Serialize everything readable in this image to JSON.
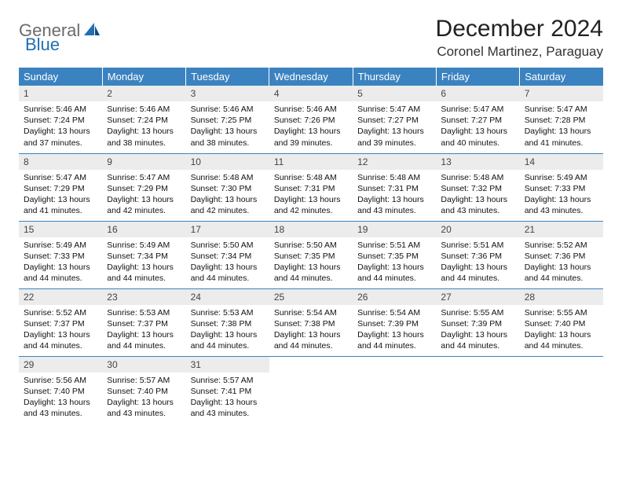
{
  "logo": {
    "part1": "General",
    "part2": "Blue"
  },
  "title": "December 2024",
  "location": "Coronel Martinez, Paraguay",
  "colors": {
    "header_bg": "#3b83c0",
    "header_text": "#ffffff",
    "daynum_bg": "#ececec",
    "border": "#3b83c0",
    "logo_gray": "#6b6b6b",
    "logo_blue": "#1f6fb2"
  },
  "weekdays": [
    "Sunday",
    "Monday",
    "Tuesday",
    "Wednesday",
    "Thursday",
    "Friday",
    "Saturday"
  ],
  "weeks": [
    [
      {
        "n": "1",
        "sr": "Sunrise: 5:46 AM",
        "ss": "Sunset: 7:24 PM",
        "dl": "Daylight: 13 hours and 37 minutes."
      },
      {
        "n": "2",
        "sr": "Sunrise: 5:46 AM",
        "ss": "Sunset: 7:24 PM",
        "dl": "Daylight: 13 hours and 38 minutes."
      },
      {
        "n": "3",
        "sr": "Sunrise: 5:46 AM",
        "ss": "Sunset: 7:25 PM",
        "dl": "Daylight: 13 hours and 38 minutes."
      },
      {
        "n": "4",
        "sr": "Sunrise: 5:46 AM",
        "ss": "Sunset: 7:26 PM",
        "dl": "Daylight: 13 hours and 39 minutes."
      },
      {
        "n": "5",
        "sr": "Sunrise: 5:47 AM",
        "ss": "Sunset: 7:27 PM",
        "dl": "Daylight: 13 hours and 39 minutes."
      },
      {
        "n": "6",
        "sr": "Sunrise: 5:47 AM",
        "ss": "Sunset: 7:27 PM",
        "dl": "Daylight: 13 hours and 40 minutes."
      },
      {
        "n": "7",
        "sr": "Sunrise: 5:47 AM",
        "ss": "Sunset: 7:28 PM",
        "dl": "Daylight: 13 hours and 41 minutes."
      }
    ],
    [
      {
        "n": "8",
        "sr": "Sunrise: 5:47 AM",
        "ss": "Sunset: 7:29 PM",
        "dl": "Daylight: 13 hours and 41 minutes."
      },
      {
        "n": "9",
        "sr": "Sunrise: 5:47 AM",
        "ss": "Sunset: 7:29 PM",
        "dl": "Daylight: 13 hours and 42 minutes."
      },
      {
        "n": "10",
        "sr": "Sunrise: 5:48 AM",
        "ss": "Sunset: 7:30 PM",
        "dl": "Daylight: 13 hours and 42 minutes."
      },
      {
        "n": "11",
        "sr": "Sunrise: 5:48 AM",
        "ss": "Sunset: 7:31 PM",
        "dl": "Daylight: 13 hours and 42 minutes."
      },
      {
        "n": "12",
        "sr": "Sunrise: 5:48 AM",
        "ss": "Sunset: 7:31 PM",
        "dl": "Daylight: 13 hours and 43 minutes."
      },
      {
        "n": "13",
        "sr": "Sunrise: 5:48 AM",
        "ss": "Sunset: 7:32 PM",
        "dl": "Daylight: 13 hours and 43 minutes."
      },
      {
        "n": "14",
        "sr": "Sunrise: 5:49 AM",
        "ss": "Sunset: 7:33 PM",
        "dl": "Daylight: 13 hours and 43 minutes."
      }
    ],
    [
      {
        "n": "15",
        "sr": "Sunrise: 5:49 AM",
        "ss": "Sunset: 7:33 PM",
        "dl": "Daylight: 13 hours and 44 minutes."
      },
      {
        "n": "16",
        "sr": "Sunrise: 5:49 AM",
        "ss": "Sunset: 7:34 PM",
        "dl": "Daylight: 13 hours and 44 minutes."
      },
      {
        "n": "17",
        "sr": "Sunrise: 5:50 AM",
        "ss": "Sunset: 7:34 PM",
        "dl": "Daylight: 13 hours and 44 minutes."
      },
      {
        "n": "18",
        "sr": "Sunrise: 5:50 AM",
        "ss": "Sunset: 7:35 PM",
        "dl": "Daylight: 13 hours and 44 minutes."
      },
      {
        "n": "19",
        "sr": "Sunrise: 5:51 AM",
        "ss": "Sunset: 7:35 PM",
        "dl": "Daylight: 13 hours and 44 minutes."
      },
      {
        "n": "20",
        "sr": "Sunrise: 5:51 AM",
        "ss": "Sunset: 7:36 PM",
        "dl": "Daylight: 13 hours and 44 minutes."
      },
      {
        "n": "21",
        "sr": "Sunrise: 5:52 AM",
        "ss": "Sunset: 7:36 PM",
        "dl": "Daylight: 13 hours and 44 minutes."
      }
    ],
    [
      {
        "n": "22",
        "sr": "Sunrise: 5:52 AM",
        "ss": "Sunset: 7:37 PM",
        "dl": "Daylight: 13 hours and 44 minutes."
      },
      {
        "n": "23",
        "sr": "Sunrise: 5:53 AM",
        "ss": "Sunset: 7:37 PM",
        "dl": "Daylight: 13 hours and 44 minutes."
      },
      {
        "n": "24",
        "sr": "Sunrise: 5:53 AM",
        "ss": "Sunset: 7:38 PM",
        "dl": "Daylight: 13 hours and 44 minutes."
      },
      {
        "n": "25",
        "sr": "Sunrise: 5:54 AM",
        "ss": "Sunset: 7:38 PM",
        "dl": "Daylight: 13 hours and 44 minutes."
      },
      {
        "n": "26",
        "sr": "Sunrise: 5:54 AM",
        "ss": "Sunset: 7:39 PM",
        "dl": "Daylight: 13 hours and 44 minutes."
      },
      {
        "n": "27",
        "sr": "Sunrise: 5:55 AM",
        "ss": "Sunset: 7:39 PM",
        "dl": "Daylight: 13 hours and 44 minutes."
      },
      {
        "n": "28",
        "sr": "Sunrise: 5:55 AM",
        "ss": "Sunset: 7:40 PM",
        "dl": "Daylight: 13 hours and 44 minutes."
      }
    ],
    [
      {
        "n": "29",
        "sr": "Sunrise: 5:56 AM",
        "ss": "Sunset: 7:40 PM",
        "dl": "Daylight: 13 hours and 43 minutes."
      },
      {
        "n": "30",
        "sr": "Sunrise: 5:57 AM",
        "ss": "Sunset: 7:40 PM",
        "dl": "Daylight: 13 hours and 43 minutes."
      },
      {
        "n": "31",
        "sr": "Sunrise: 5:57 AM",
        "ss": "Sunset: 7:41 PM",
        "dl": "Daylight: 13 hours and 43 minutes."
      },
      null,
      null,
      null,
      null
    ]
  ]
}
